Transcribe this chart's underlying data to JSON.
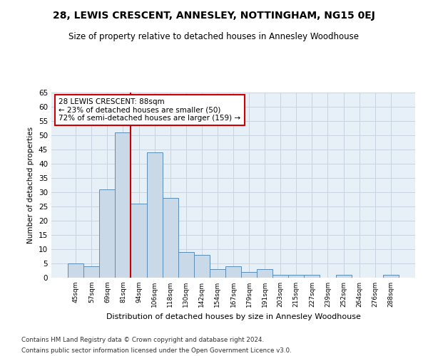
{
  "title": "28, LEWIS CRESCENT, ANNESLEY, NOTTINGHAM, NG15 0EJ",
  "subtitle": "Size of property relative to detached houses in Annesley Woodhouse",
  "xlabel": "Distribution of detached houses by size in Annesley Woodhouse",
  "ylabel": "Number of detached properties",
  "categories": [
    "45sqm",
    "57sqm",
    "69sqm",
    "81sqm",
    "94sqm",
    "106sqm",
    "118sqm",
    "130sqm",
    "142sqm",
    "154sqm",
    "167sqm",
    "179sqm",
    "191sqm",
    "203sqm",
    "215sqm",
    "227sqm",
    "239sqm",
    "252sqm",
    "264sqm",
    "276sqm",
    "288sqm"
  ],
  "values": [
    5,
    4,
    31,
    51,
    26,
    44,
    28,
    9,
    8,
    3,
    4,
    2,
    3,
    1,
    1,
    1,
    0,
    1,
    0,
    0,
    1
  ],
  "bar_color": "#c9d9e8",
  "bar_edge_color": "#5b8db8",
  "property_line_x": 3.5,
  "property_value": "88sqm",
  "pct_smaller": 23,
  "n_smaller": 50,
  "pct_larger_semi": 72,
  "n_larger_semi": 159,
  "annotation_box_color": "#ffffff",
  "annotation_box_edge_color": "#cc0000",
  "vline_color": "#cc0000",
  "ylim": [
    0,
    65
  ],
  "yticks": [
    0,
    5,
    10,
    15,
    20,
    25,
    30,
    35,
    40,
    45,
    50,
    55,
    60,
    65
  ],
  "grid_color": "#c8d4e0",
  "background_color": "#e8f0f7",
  "fig_background": "#ffffff",
  "footnote1": "Contains HM Land Registry data © Crown copyright and database right 2024.",
  "footnote2": "Contains public sector information licensed under the Open Government Licence v3.0."
}
